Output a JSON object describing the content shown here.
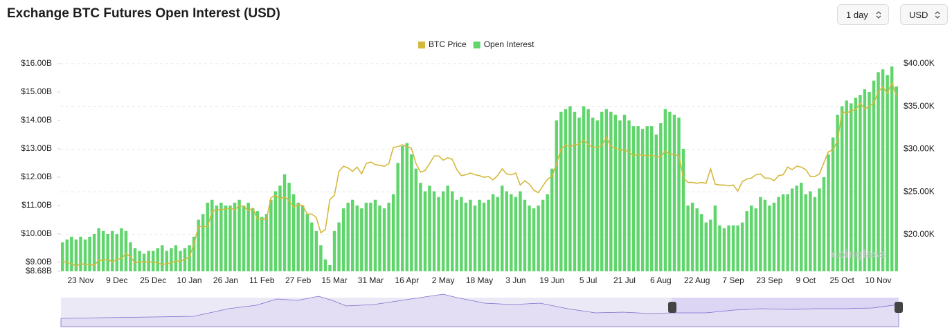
{
  "title": "Exchange BTC Futures Open Interest (USD)",
  "controls": [
    {
      "label": "1 day"
    },
    {
      "label": "USD"
    }
  ],
  "watermark": "coinglass",
  "chart_data": {
    "type": "combo",
    "categories": [
      null,
      null,
      null,
      null,
      "23 Nov",
      null,
      null,
      null,
      null,
      null,
      null,
      null,
      "9 Dec",
      null,
      null,
      null,
      null,
      null,
      null,
      null,
      "25 Dec",
      null,
      null,
      null,
      null,
      null,
      null,
      null,
      "10 Jan",
      null,
      null,
      null,
      null,
      null,
      null,
      null,
      "26 Jan",
      null,
      null,
      null,
      null,
      null,
      null,
      null,
      "11 Feb",
      null,
      null,
      null,
      null,
      null,
      null,
      null,
      "27 Feb",
      null,
      null,
      null,
      null,
      null,
      null,
      null,
      "15 Mar",
      null,
      null,
      null,
      null,
      null,
      null,
      null,
      "31 Mar",
      null,
      null,
      null,
      null,
      null,
      null,
      null,
      "16 Apr",
      null,
      null,
      null,
      null,
      null,
      null,
      null,
      "2 May",
      null,
      null,
      null,
      null,
      null,
      null,
      null,
      "18 May",
      null,
      null,
      null,
      null,
      null,
      null,
      null,
      "3 Jun",
      null,
      null,
      null,
      null,
      null,
      null,
      null,
      "19 Jun",
      null,
      null,
      null,
      null,
      null,
      null,
      null,
      "5 Jul",
      null,
      null,
      null,
      null,
      null,
      null,
      null,
      "21 Jul",
      null,
      null,
      null,
      null,
      null,
      null,
      null,
      "6 Aug",
      null,
      null,
      null,
      null,
      null,
      null,
      null,
      "22 Aug",
      null,
      null,
      null,
      null,
      null,
      null,
      null,
      "7 Sep",
      null,
      null,
      null,
      null,
      null,
      null,
      null,
      "23 Sep",
      null,
      null,
      null,
      null,
      null,
      null,
      null,
      "9 Oct",
      null,
      null,
      null,
      null,
      null,
      null,
      null,
      "25 Oct",
      null,
      null,
      null,
      null,
      null,
      null,
      null,
      "10 Nov",
      null,
      null,
      null,
      null
    ],
    "series": [
      {
        "name": "BTC Price",
        "type": "line",
        "axis": "y2",
        "color": "#d4b83c",
        "values": [
          16.9,
          16.7,
          16.6,
          16.3,
          16.6,
          16.5,
          16.5,
          16.4,
          17.0,
          17.0,
          17.1,
          16.8,
          17.1,
          17.2,
          17.8,
          17.4,
          16.7,
          16.8,
          16.8,
          16.8,
          16.8,
          16.7,
          16.5,
          16.6,
          16.7,
          16.9,
          16.9,
          17.1,
          17.4,
          18.9,
          20.9,
          21.0,
          20.9,
          22.7,
          22.9,
          22.9,
          23.0,
          23.1,
          22.9,
          23.4,
          23.3,
          22.8,
          23.1,
          21.8,
          21.8,
          21.8,
          24.3,
          24.6,
          24.2,
          24.4,
          24.0,
          23.2,
          23.5,
          23.4,
          22.4,
          22.4,
          22.0,
          20.2,
          20.6,
          24.1,
          24.6,
          27.4,
          28.0,
          27.8,
          27.4,
          27.9,
          27.1,
          28.3,
          28.5,
          28.2,
          28.1,
          28.0,
          28.3,
          30.2,
          30.3,
          30.5,
          30.3,
          30.1,
          28.3,
          27.3,
          27.5,
          28.3,
          29.2,
          29.2,
          28.7,
          29.0,
          28.8,
          27.6,
          26.9,
          27.0,
          27.2,
          27.0,
          26.9,
          26.7,
          26.8,
          26.4,
          26.9,
          27.7,
          27.1,
          27.0,
          27.2,
          25.8,
          26.3,
          25.9,
          25.2,
          24.9,
          25.7,
          26.5,
          26.8,
          28.3,
          30.0,
          30.5,
          30.3,
          30.5,
          30.6,
          31.1,
          30.5,
          30.2,
          30.2,
          30.4,
          31.4,
          30.3,
          30.1,
          29.9,
          29.9,
          29.7,
          29.2,
          29.4,
          29.3,
          29.2,
          29.3,
          29.1,
          29.1,
          29.8,
          29.4,
          29.4,
          29.2,
          26.6,
          26.1,
          26.1,
          26.0,
          26.1,
          26.0,
          27.7,
          25.9,
          25.8,
          25.8,
          25.7,
          25.8,
          25.1,
          26.2,
          26.5,
          26.6,
          27.0,
          27.1,
          26.6,
          26.6,
          26.3,
          26.9,
          27.0,
          27.9,
          27.6,
          28.0,
          27.9,
          27.6,
          26.8,
          26.8,
          27.1,
          28.4,
          29.7,
          29.9,
          31.0,
          34.4,
          34.2,
          34.5,
          34.6,
          35.4,
          34.7,
          35.0,
          35.4,
          36.7,
          37.3,
          36.5,
          37.8,
          36.2
        ]
      },
      {
        "name": "Open Interest",
        "type": "bar",
        "axis": "y",
        "color": "#5fd56c",
        "values": [
          9.7,
          9.8,
          9.9,
          9.8,
          9.9,
          9.8,
          9.9,
          10.0,
          10.2,
          10.1,
          10.0,
          10.1,
          10.0,
          10.2,
          10.1,
          9.7,
          9.5,
          9.4,
          9.3,
          9.4,
          9.4,
          9.5,
          9.6,
          9.4,
          9.5,
          9.6,
          9.4,
          9.5,
          9.6,
          9.9,
          10.5,
          10.7,
          11.1,
          11.2,
          11.0,
          11.1,
          11.0,
          11.0,
          11.1,
          11.2,
          11.0,
          11.1,
          10.9,
          10.8,
          10.6,
          10.7,
          11.2,
          11.5,
          11.7,
          12.1,
          11.8,
          11.4,
          11.1,
          11.0,
          10.7,
          10.4,
          10.1,
          9.6,
          9.1,
          8.9,
          10.1,
          10.4,
          10.9,
          11.1,
          11.2,
          11.0,
          10.9,
          11.1,
          11.1,
          11.2,
          11.0,
          10.9,
          11.1,
          11.4,
          12.5,
          13.1,
          13.2,
          12.8,
          12.3,
          11.8,
          11.5,
          11.7,
          11.5,
          11.3,
          11.5,
          11.7,
          11.5,
          11.2,
          11.3,
          11.1,
          11.2,
          11.0,
          11.2,
          11.1,
          11.2,
          11.4,
          11.3,
          11.7,
          11.5,
          11.4,
          11.3,
          11.5,
          11.2,
          11.0,
          10.9,
          11.0,
          11.2,
          11.4,
          12.3,
          14.0,
          14.3,
          14.4,
          14.5,
          14.3,
          14.1,
          14.5,
          14.4,
          14.1,
          14.0,
          14.3,
          14.4,
          14.3,
          14.2,
          14.0,
          14.2,
          14.0,
          13.8,
          13.8,
          13.7,
          13.8,
          13.8,
          13.5,
          13.9,
          14.4,
          14.3,
          14.2,
          14.1,
          13.0,
          11.0,
          11.1,
          10.9,
          10.7,
          10.4,
          10.5,
          11.0,
          10.3,
          10.2,
          10.3,
          10.3,
          10.3,
          10.4,
          10.8,
          11.0,
          10.9,
          11.3,
          11.2,
          11.0,
          11.1,
          11.3,
          11.4,
          11.4,
          11.6,
          11.7,
          11.8,
          11.4,
          11.5,
          11.3,
          11.6,
          12.0,
          12.8,
          13.4,
          14.2,
          14.5,
          14.7,
          14.6,
          14.8,
          14.9,
          15.1,
          15.0,
          15.4,
          15.7,
          15.8,
          15.6,
          15.9,
          15.2
        ]
      }
    ],
    "ylim": [
      8.68,
      16.0
    ],
    "yticks": [
      {
        "value": 8.68,
        "label": "$8.68B"
      },
      {
        "value": 9,
        "label": "$9.00B"
      },
      {
        "value": 10,
        "label": "$10.00B"
      },
      {
        "value": 11,
        "label": "$11.00B"
      },
      {
        "value": 12,
        "label": "$12.00B"
      },
      {
        "value": 13,
        "label": "$13.00B"
      },
      {
        "value": 14,
        "label": "$14.00B"
      },
      {
        "value": 15,
        "label": "$15.00B"
      },
      {
        "value": 16,
        "label": "$16.00B"
      }
    ],
    "y2lim": [
      15.7,
      40
    ],
    "y2ticks": [
      {
        "value": 20,
        "label": "$20.00K"
      },
      {
        "value": 25,
        "label": "$25.00K"
      },
      {
        "value": 30,
        "label": "$30.00K"
      },
      {
        "value": 35,
        "label": "$35.00K"
      },
      {
        "value": 40,
        "label": "$40.00K"
      }
    ],
    "grid": true
  }
}
